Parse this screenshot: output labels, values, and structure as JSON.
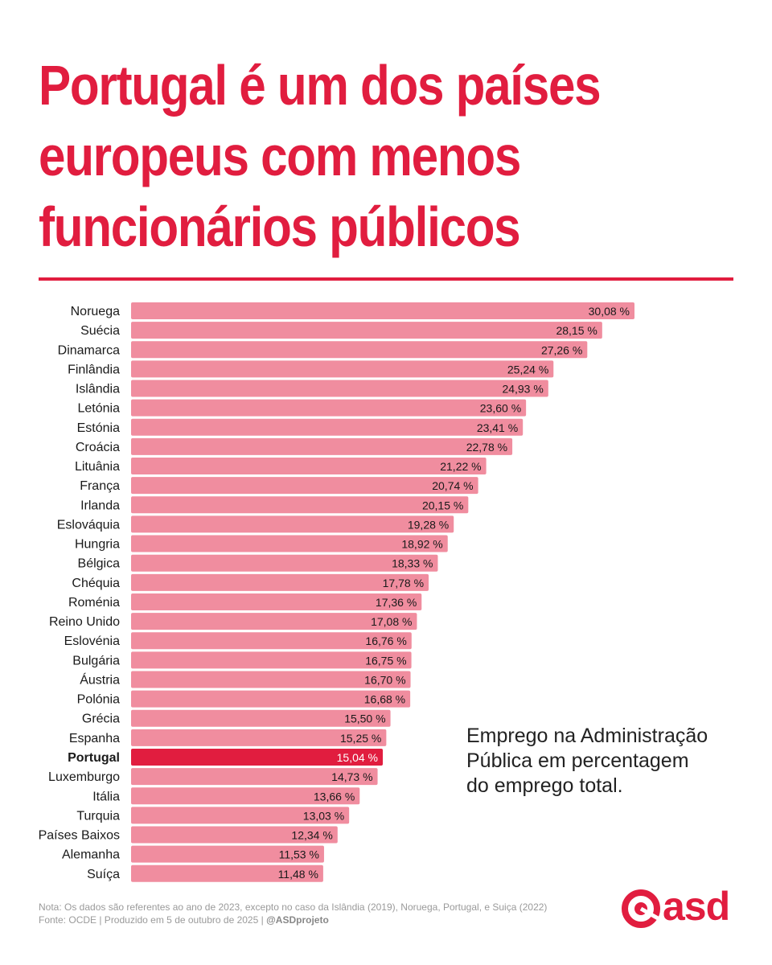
{
  "title": "Portugal é um dos países\neuropeus com menos\nfuncionários públicos",
  "note": "Emprego na Administração\nPública em percentagem\ndo emprego total.",
  "footer": {
    "text": "Nota: Os dados são referentes ao ano de 2023, excepto no caso da Islândia (2019), Noruega, Portugal, e Suiça (2022) Fonte: OCDE | Produzido em 5 de outubro de 2025 | ",
    "handle": "@ASDprojeto"
  },
  "logo": {
    "text": "asd",
    "icon": "asd-logo-icon"
  },
  "colors": {
    "accent": "#e11d3f",
    "bar": "#f08d9f",
    "highlight_bar": "#e11d3f"
  },
  "chart_data": {
    "type": "bar",
    "orientation": "horizontal",
    "categories": [
      "Noruega",
      "Suécia",
      "Dinamarca",
      "Finlândia",
      "Islândia",
      "Letónia",
      "Estónia",
      "Croácia",
      "Lituânia",
      "França",
      "Irlanda",
      "Eslováquia",
      "Hungria",
      "Bélgica",
      "Chéquia",
      "Roménia",
      "Reino Unido",
      "Eslovénia",
      "Bulgária",
      "Áustria",
      "Polónia",
      "Grécia",
      "Espanha",
      "Portugal",
      "Luxemburgo",
      "Itália",
      "Turquia",
      "Países Baixos",
      "Alemanha",
      "Suíça"
    ],
    "values": [
      30.08,
      28.15,
      27.26,
      25.24,
      24.93,
      23.6,
      23.41,
      22.78,
      21.22,
      20.74,
      20.15,
      19.28,
      18.92,
      18.33,
      17.78,
      17.36,
      17.08,
      16.76,
      16.75,
      16.7,
      16.68,
      15.5,
      15.25,
      15.04,
      14.73,
      13.66,
      13.03,
      12.34,
      11.53,
      11.48
    ],
    "labels": [
      "30,08 %",
      "28,15 %",
      "27,26 %",
      "25,24 %",
      "24,93 %",
      "23,60 %",
      "23,41 %",
      "22,78 %",
      "21,22 %",
      "20,74 %",
      "20,15 %",
      "19,28 %",
      "18,92 %",
      "18,33 %",
      "17,78 %",
      "17,36 %",
      "17,08 %",
      "16,76 %",
      "16,75 %",
      "16,70 %",
      "16,68 %",
      "15,50 %",
      "15,25 %",
      "15,04 %",
      "14,73 %",
      "13,66 %",
      "13,03 %",
      "12,34 %",
      "11,53 %",
      "11,48 %"
    ],
    "highlight": "Portugal",
    "unit": "%",
    "xlim": [
      0,
      30.08
    ],
    "grid": false,
    "legend": "none"
  }
}
